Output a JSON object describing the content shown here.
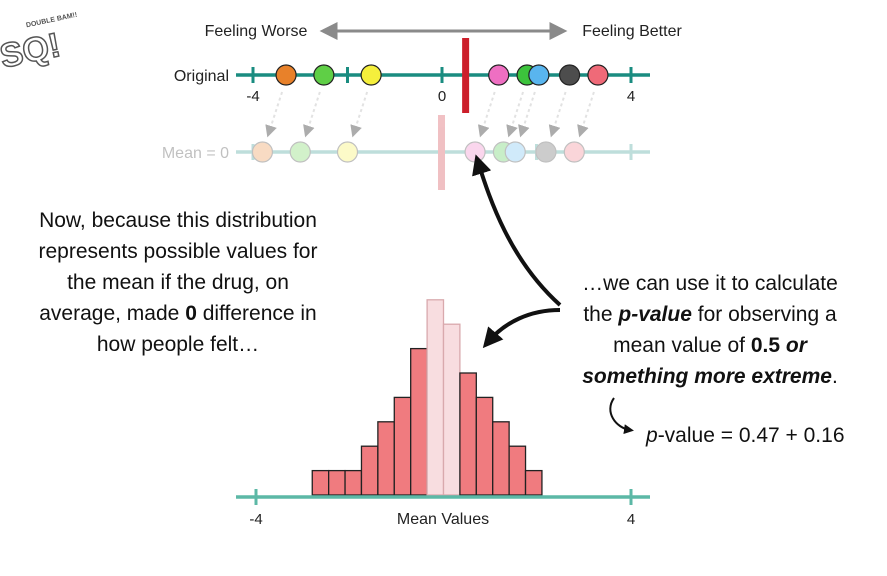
{
  "logo": {
    "line1": "SQ!",
    "line2": "DOUBLE BAM!!"
  },
  "direction": {
    "left": "Feeling Worse",
    "right": "Feeling Better"
  },
  "original_row": {
    "label": "Original",
    "ticks": [
      "-4",
      "0",
      "4"
    ],
    "points": [
      -3.3,
      -2.5,
      -1.5,
      1.2,
      1.8,
      2.05,
      2.7,
      3.3
    ],
    "point_colors": [
      "#e8812a",
      "#5fcf46",
      "#f5ef3c",
      "#ee6fc2",
      "#3cc33c",
      "#59b5ee",
      "#4d4d4d",
      "#ef6a78"
    ],
    "mean_marker": 0.5,
    "mean_color": "#cc1f2b"
  },
  "shifted_row": {
    "label": "Mean = 0",
    "points": [
      -3.8,
      -3.0,
      -2.0,
      0.7,
      1.3,
      1.55,
      2.2,
      2.8
    ]
  },
  "left_text": {
    "line1": "Now, because this distribution",
    "line2": "represents possible values for",
    "line3": "the mean if the drug, on",
    "line4_pre": "average, made ",
    "line4_bold": "0",
    "line4_post": " difference in",
    "line5": "how people felt…"
  },
  "right_text": {
    "line1": "…we can use it to calculate",
    "line2_pre": "the ",
    "line2_bold": "p-value",
    "line2_post": " for observing a",
    "line3_pre": "mean value of ",
    "line3_bold": "0.5",
    "line3_bolditalic": "or",
    "line4_bolditalic": "something more extreme",
    "line4_post": "."
  },
  "formula": {
    "p": "p",
    "rest": "-value = 0.47 + 0.16"
  },
  "chart_data": {
    "type": "bar",
    "xlabel": "Mean Values",
    "ticks": [
      "-4",
      "4"
    ],
    "xlim": [
      -4,
      4
    ],
    "bin_width": 0.35,
    "bin_start": -2.8,
    "values": [
      1,
      1,
      1,
      2,
      3,
      4,
      6,
      8,
      7,
      5,
      4,
      3,
      2,
      1
    ],
    "highlight_range": [
      -0.5,
      0.5
    ],
    "colors": {
      "bar": "#f07b7f",
      "bar_faded": "#f8dde0",
      "axis": "#5cb8a6"
    }
  }
}
